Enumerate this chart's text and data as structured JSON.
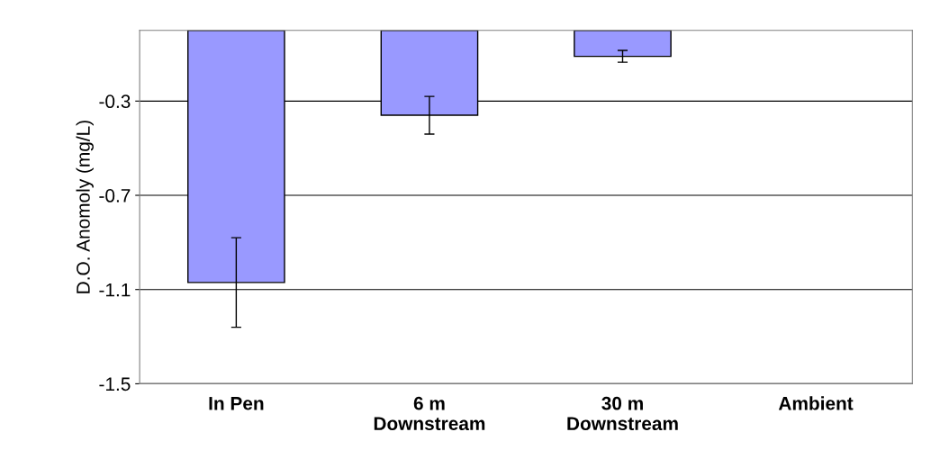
{
  "chart_data": {
    "type": "bar",
    "ylabel": "D.O. Anomoly (mg/L)",
    "categories": [
      "In Pen",
      "6 m\nDownstream",
      "30 m\nDownstream",
      "Ambient"
    ],
    "values": [
      -1.07,
      -0.36,
      -0.11,
      0
    ],
    "errors": [
      0.19,
      0.08,
      0.025,
      null
    ],
    "color": "#9999ff",
    "ylim": [
      -1.5,
      0
    ],
    "yticks": [
      -1.5,
      -1.1,
      -0.7,
      -0.3
    ],
    "grid": "y"
  }
}
